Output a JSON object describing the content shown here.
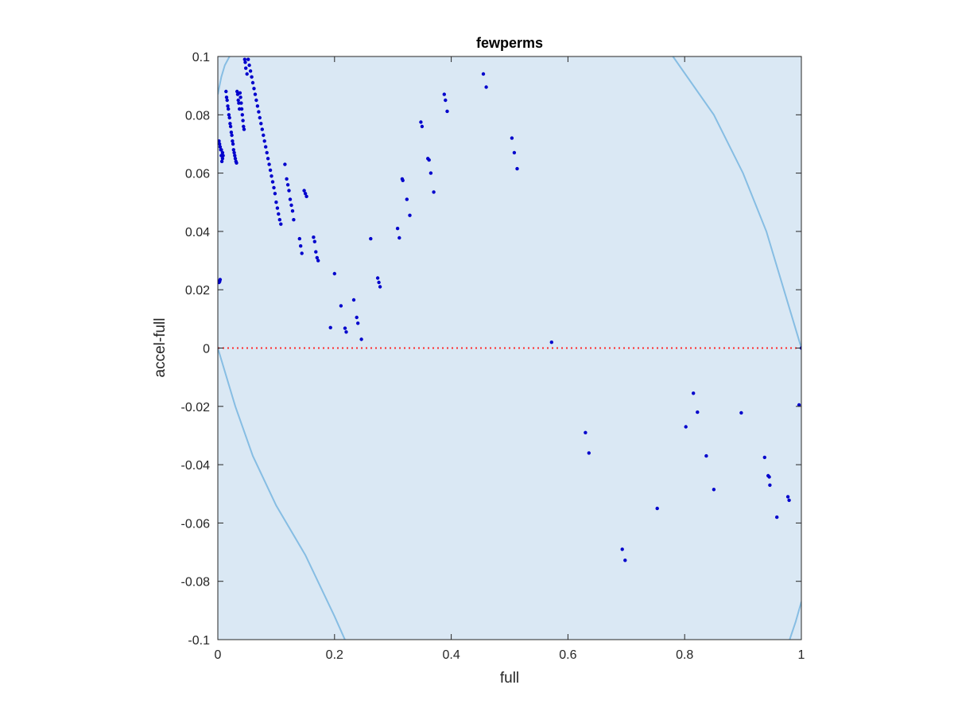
{
  "chart_data": {
    "type": "scatter",
    "title": "fewperms",
    "xlabel": "full",
    "ylabel": "accel-full",
    "xlim": [
      0,
      1
    ],
    "ylim": [
      -0.1,
      0.1
    ],
    "x_ticks": [
      "0",
      "0.2",
      "0.4",
      "0.6",
      "0.8",
      "1"
    ],
    "y_ticks": [
      "-0.1",
      "-0.08",
      "-0.06",
      "-0.04",
      "-0.02",
      "0",
      "0.02",
      "0.04",
      "0.06",
      "0.08",
      "0.1"
    ],
    "grid": false,
    "colors": {
      "points": "#0000cc",
      "band_fill": "#dae8f4",
      "band_edge": "#86bde3",
      "zero_line": "#ff2a2a"
    },
    "band_curves": [
      {
        "x": [
          0,
          0.03,
          0.06,
          0.1,
          0.15,
          0.2,
          0.22
        ],
        "y": [
          0,
          -0.02,
          -0.037,
          -0.054,
          -0.071,
          -0.092,
          -0.101
        ]
      },
      {
        "x": [
          0,
          0.006,
          0.012,
          0.02
        ],
        "y": [
          0.087,
          0.093,
          0.097,
          0.1
        ]
      },
      {
        "x": [
          0.78,
          0.85,
          0.9,
          0.94,
          0.97,
          1.0
        ],
        "y": [
          0.1,
          0.08,
          0.06,
          0.04,
          0.02,
          0
        ]
      },
      {
        "x": [
          0.98,
          0.99,
          1.0
        ],
        "y": [
          -0.1,
          -0.094,
          -0.087
        ]
      }
    ],
    "series": [
      {
        "x": [
          0.002,
          0.003,
          0.004,
          0.006,
          0.008,
          0.009,
          0.008,
          0.007,
          0.006,
          0.005,
          0.004,
          0.003,
          0.002,
          0.003,
          0.014,
          0.016,
          0.018,
          0.02,
          0.022,
          0.024,
          0.026,
          0.028,
          0.03,
          0.032,
          0.034,
          0.036,
          0.015,
          0.017,
          0.019,
          0.021,
          0.023,
          0.025,
          0.027,
          0.029,
          0.031,
          0.033,
          0.035,
          0.037,
          0.038,
          0.039,
          0.04,
          0.041,
          0.042,
          0.043,
          0.044,
          0.045,
          0.046,
          0.047,
          0.048,
          0.05,
          0.052,
          0.054,
          0.056,
          0.058,
          0.06,
          0.062,
          0.064,
          0.066,
          0.068,
          0.07,
          0.072,
          0.074,
          0.076,
          0.078,
          0.08,
          0.082,
          0.084,
          0.086,
          0.088,
          0.09,
          0.092,
          0.094,
          0.096,
          0.098,
          0.1,
          0.102,
          0.104,
          0.106,
          0.108,
          0.115,
          0.118,
          0.12,
          0.122,
          0.124,
          0.126,
          0.128,
          0.13,
          0.14,
          0.142,
          0.144,
          0.148,
          0.15,
          0.152,
          0.164,
          0.166,
          0.168,
          0.17,
          0.172,
          0.193,
          0.2,
          0.211,
          0.218,
          0.22,
          0.233,
          0.238,
          0.24,
          0.246,
          0.262,
          0.274,
          0.276,
          0.278,
          0.308,
          0.311,
          0.316,
          0.317,
          0.324,
          0.329,
          0.348,
          0.35,
          0.36,
          0.362,
          0.365,
          0.37,
          0.388,
          0.39,
          0.393,
          0.455,
          0.46,
          0.504,
          0.508,
          0.513,
          0.572,
          0.63,
          0.636,
          0.693,
          0.698,
          0.753,
          0.802,
          0.815,
          0.822,
          0.837,
          0.85,
          0.897,
          0.937,
          0.943,
          0.945,
          0.946,
          0.958,
          0.977,
          0.979,
          0.996,
          1.0
        ],
        "y": [
          0.071,
          0.07,
          0.069,
          0.068,
          0.067,
          0.066,
          0.065,
          0.064,
          0.066,
          0.068,
          0.0235,
          0.0228,
          0.0225,
          0.023,
          0.088,
          0.085,
          0.082,
          0.079,
          0.076,
          0.073,
          0.07,
          0.067,
          0.065,
          0.0635,
          0.087,
          0.084,
          0.086,
          0.083,
          0.08,
          0.077,
          0.074,
          0.071,
          0.068,
          0.066,
          0.064,
          0.088,
          0.085,
          0.082,
          0.0875,
          0.086,
          0.084,
          0.082,
          0.08,
          0.078,
          0.076,
          0.075,
          0.099,
          0.098,
          0.096,
          0.094,
          0.099,
          0.097,
          0.095,
          0.093,
          0.091,
          0.089,
          0.087,
          0.085,
          0.083,
          0.081,
          0.079,
          0.077,
          0.075,
          0.073,
          0.071,
          0.069,
          0.067,
          0.065,
          0.063,
          0.061,
          0.059,
          0.057,
          0.055,
          0.053,
          0.05,
          0.048,
          0.046,
          0.044,
          0.0425,
          0.063,
          0.058,
          0.056,
          0.054,
          0.051,
          0.049,
          0.047,
          0.044,
          0.0375,
          0.035,
          0.0325,
          0.054,
          0.053,
          0.052,
          0.038,
          0.0365,
          0.033,
          0.031,
          0.03,
          0.007,
          0.0255,
          0.0145,
          0.0068,
          0.0055,
          0.0165,
          0.0105,
          0.0085,
          0.003,
          0.0375,
          0.024,
          0.0225,
          0.021,
          0.041,
          0.0378,
          0.058,
          0.0575,
          0.051,
          0.0455,
          0.0775,
          0.076,
          0.065,
          0.0645,
          0.06,
          0.0535,
          0.087,
          0.085,
          0.0812,
          0.094,
          0.0895,
          0.072,
          0.067,
          0.0615,
          0.002,
          -0.029,
          -0.036,
          -0.069,
          -0.0728,
          -0.055,
          -0.027,
          -0.0155,
          -0.022,
          -0.037,
          -0.0485,
          -0.0222,
          -0.0375,
          -0.0438,
          -0.0442,
          -0.047,
          -0.058,
          -0.051,
          -0.0522,
          -0.0195,
          0.0
        ]
      }
    ]
  }
}
